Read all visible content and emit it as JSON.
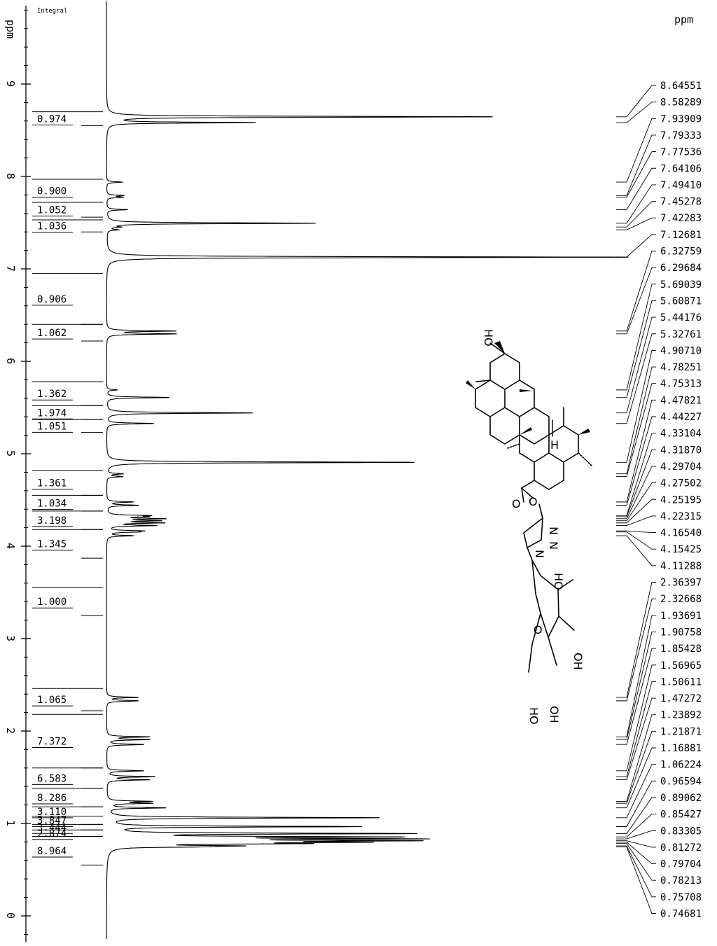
{
  "chart_data": {
    "type": "line",
    "x_axis_label": "ppm",
    "right_axis_label": "ppm",
    "integral_header": "Integral",
    "xlim": [
      -0.2,
      10.0
    ],
    "x_reversed": true,
    "ticks": [
      {
        "value": 9,
        "label": "9"
      },
      {
        "value": 8,
        "label": "8"
      },
      {
        "value": 7,
        "label": "7"
      },
      {
        "value": 6,
        "label": "6"
      },
      {
        "value": 5,
        "label": "5"
      },
      {
        "value": 4,
        "label": "4"
      },
      {
        "value": 3,
        "label": "3"
      },
      {
        "value": 2,
        "label": "2"
      },
      {
        "value": 1,
        "label": "1"
      },
      {
        "value": 0,
        "label": "0"
      }
    ],
    "minor_tick_step": 0.2,
    "peaks": [
      {
        "ppm": 8.64551,
        "label": "8.64551",
        "height": 0.74
      },
      {
        "ppm": 8.58289,
        "label": "8.58289",
        "height": 0.28
      },
      {
        "ppm": 7.93909,
        "label": "7.93909",
        "height": 0.03
      },
      {
        "ppm": 7.79333,
        "label": "7.79333",
        "height": 0.03
      },
      {
        "ppm": 7.77536,
        "label": "7.77536",
        "height": 0.03
      },
      {
        "ppm": 7.64106,
        "label": "7.64106",
        "height": 0.04
      },
      {
        "ppm": 7.4941,
        "label": "7.49410",
        "height": 0.4
      },
      {
        "ppm": 7.45278,
        "label": "7.45278",
        "height": 0.02
      },
      {
        "ppm": 7.42283,
        "label": "7.42283",
        "height": 0.02
      },
      {
        "ppm": 7.12681,
        "label": "7.12681",
        "height": 1.0
      },
      {
        "ppm": 6.32759,
        "label": "6.32759",
        "height": 0.13
      },
      {
        "ppm": 6.29684,
        "label": "6.29684",
        "height": 0.13
      },
      {
        "ppm": 5.69039,
        "label": "5.69039",
        "height": 0.02
      },
      {
        "ppm": 5.60871,
        "label": "5.60871",
        "height": 0.12
      },
      {
        "ppm": 5.44176,
        "label": "5.44176",
        "height": 0.28
      },
      {
        "ppm": 5.32761,
        "label": "5.32761",
        "height": 0.09
      },
      {
        "ppm": 4.9071,
        "label": "4.90710",
        "height": 0.59
      },
      {
        "ppm": 4.78251,
        "label": "4.78251",
        "height": 0.03
      },
      {
        "ppm": 4.75313,
        "label": "4.75313",
        "height": 0.03
      },
      {
        "ppm": 4.47821,
        "label": "4.47821",
        "height": 0.05
      },
      {
        "ppm": 4.44227,
        "label": "4.44227",
        "height": 0.06
      },
      {
        "ppm": 4.33104,
        "label": "4.33104",
        "height": 0.07
      },
      {
        "ppm": 4.3187,
        "label": "4.31870",
        "height": 0.06
      },
      {
        "ppm": 4.29704,
        "label": "4.29704",
        "height": 0.1
      },
      {
        "ppm": 4.27502,
        "label": "4.27502",
        "height": 0.09
      },
      {
        "ppm": 4.25195,
        "label": "4.25195",
        "height": 0.1
      },
      {
        "ppm": 4.22315,
        "label": "4.22315",
        "height": 0.09
      },
      {
        "ppm": 4.1654,
        "label": "4.16540",
        "height": 0.06
      },
      {
        "ppm": 4.15425,
        "label": "4.15425",
        "height": 0.05
      },
      {
        "ppm": 4.11288,
        "label": "4.11288",
        "height": 0.05
      },
      {
        "ppm": 2.36397,
        "label": "2.36397",
        "height": 0.06
      },
      {
        "ppm": 2.32668,
        "label": "2.32668",
        "height": 0.06
      },
      {
        "ppm": 1.93691,
        "label": "1.93691",
        "height": 0.08
      },
      {
        "ppm": 1.90758,
        "label": "1.90758",
        "height": 0.08
      },
      {
        "ppm": 1.85428,
        "label": "1.85428",
        "height": 0.07
      },
      {
        "ppm": 1.56965,
        "label": "1.56965",
        "height": 0.07
      },
      {
        "ppm": 1.50611,
        "label": "1.50611",
        "height": 0.09
      },
      {
        "ppm": 1.47272,
        "label": "1.47272",
        "height": 0.08
      },
      {
        "ppm": 1.23892,
        "label": "1.23892",
        "height": 0.08
      },
      {
        "ppm": 1.21871,
        "label": "1.21871",
        "height": 0.08
      },
      {
        "ppm": 1.16881,
        "label": "1.16881",
        "height": 0.11
      },
      {
        "ppm": 1.06224,
        "label": "1.06224",
        "height": 0.52
      },
      {
        "ppm": 0.96594,
        "label": "0.96594",
        "height": 0.48
      },
      {
        "ppm": 0.89062,
        "label": "0.89062",
        "height": 0.57
      },
      {
        "ppm": 0.85427,
        "label": "0.85427",
        "height": 0.5
      },
      {
        "ppm": 0.83305,
        "label": "0.83305",
        "height": 0.52
      },
      {
        "ppm": 0.81272,
        "label": "0.81272",
        "height": 0.49
      },
      {
        "ppm": 0.79704,
        "label": "0.79704",
        "height": 0.38
      },
      {
        "ppm": 0.78213,
        "label": "0.78213",
        "height": 0.3
      },
      {
        "ppm": 0.75708,
        "label": "0.75708",
        "height": 0.2
      },
      {
        "ppm": 0.74681,
        "label": "0.74681",
        "height": 0.12
      }
    ],
    "integrals": [
      {
        "value": 0.974,
        "label": "0.974",
        "from": 8.7,
        "to": 8.55
      },
      {
        "value": 0.9,
        "label": "0.900",
        "from": 7.97,
        "to": 7.72
      },
      {
        "value": 1.052,
        "label": "1.052",
        "from": 7.72,
        "to": 7.56
      },
      {
        "value": 1.036,
        "label": "1.036",
        "from": 7.53,
        "to": 7.4
      },
      {
        "value": 0.906,
        "label": "0.906",
        "from": 6.95,
        "to": 6.4
      },
      {
        "value": 1.062,
        "label": "1.062",
        "from": 6.4,
        "to": 6.22
      },
      {
        "value": 1.362,
        "label": "1.362",
        "from": 5.78,
        "to": 5.52
      },
      {
        "value": 1.974,
        "label": "1.974",
        "from": 5.52,
        "to": 5.37
      },
      {
        "value": 1.051,
        "label": "1.051",
        "from": 5.37,
        "to": 5.23
      },
      {
        "value": 1.361,
        "label": "1.361",
        "from": 4.82,
        "to": 4.55
      },
      {
        "value": 1.034,
        "label": "1.034",
        "from": 4.55,
        "to": 4.38
      },
      {
        "value": 3.198,
        "label": "3.198",
        "from": 4.38,
        "to": 4.18
      },
      {
        "value": 1.345,
        "label": "1.345",
        "from": 4.18,
        "to": 3.87
      },
      {
        "value": 1.0,
        "label": "1.000",
        "from": 3.55,
        "to": 3.25
      },
      {
        "value": 1.065,
        "label": "1.065",
        "from": 2.46,
        "to": 2.22
      },
      {
        "value": 7.372,
        "label": "7.372",
        "from": 2.18,
        "to": 1.6
      },
      {
        "value": 6.583,
        "label": "6.583",
        "from": 1.6,
        "to": 1.38
      },
      {
        "value": 8.286,
        "label": "8.286",
        "from": 1.38,
        "to": 1.18
      },
      {
        "value": 3.11,
        "label": "3.110",
        "from": 1.18,
        "to": 1.08
      },
      {
        "value": 3.847,
        "label": "3.847",
        "from": 1.08,
        "to": 0.99
      },
      {
        "value": 3.444,
        "label": "3.444",
        "from": 0.99,
        "to": 0.93
      },
      {
        "value": 2.874,
        "label": "2.874",
        "from": 0.93,
        "to": 0.86
      },
      {
        "value": 8.964,
        "label": "8.964",
        "from": 0.86,
        "to": 0.55
      }
    ]
  },
  "structure": {
    "labels": [
      "HO",
      "H",
      "O",
      "O",
      "N",
      "N",
      "N",
      "HO",
      "O",
      "OH",
      "OH",
      "HO"
    ]
  }
}
